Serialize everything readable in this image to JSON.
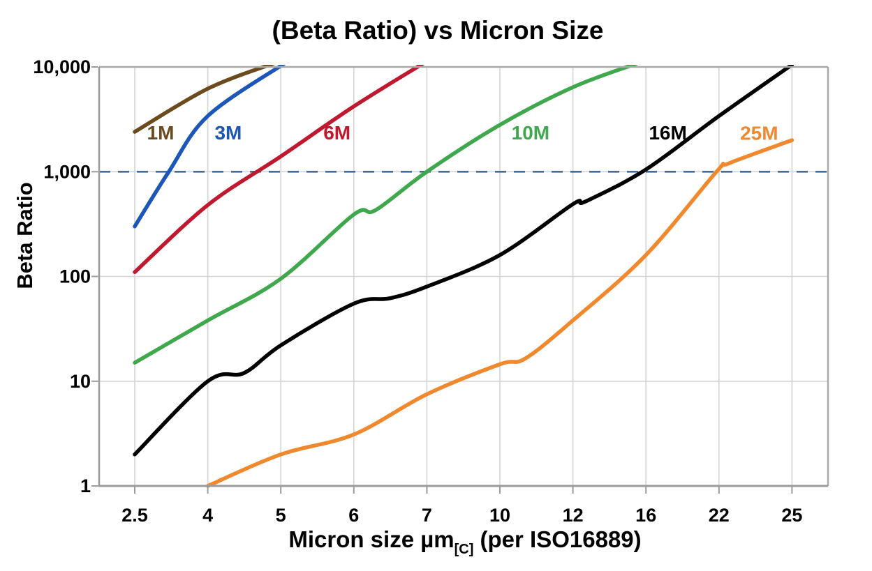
{
  "chart_data": {
    "type": "line",
    "title": "(Beta Ratio) vs Micron Size",
    "ylabel": "Beta Ratio",
    "xlabel": "Micron size µm[C] (per ISO16889)",
    "xlabel_parts": {
      "main": "Micron size µm",
      "sub": "[C]",
      "rest": " (per ISO16889)"
    },
    "x_axis": {
      "scale": "categorical",
      "categories": [
        2.5,
        4,
        5,
        6,
        7,
        10,
        12,
        16,
        22,
        25
      ],
      "tick_labels": [
        "2.5",
        "4",
        "5",
        "6",
        "7",
        "10",
        "12",
        "16",
        "22",
        "25"
      ]
    },
    "y_axis": {
      "scale": "log",
      "range": [
        1,
        10000
      ],
      "tick_values": [
        1,
        10,
        100,
        1000,
        10000
      ],
      "tick_labels": [
        "1",
        "10",
        "100",
        "1,000",
        "10,000"
      ],
      "gridline_values": [
        10,
        100,
        1000
      ]
    },
    "grid": true,
    "legend_position": "inline-labels",
    "reference_line": {
      "value": 1000,
      "style": "dashed",
      "color": "#426a9a"
    },
    "series": [
      {
        "name": "1M",
        "color": "#6b4a1d",
        "label": {
          "text": "1M",
          "micron": 3.03,
          "value": 2350
        },
        "points": [
          [
            2.5,
            2400
          ],
          [
            4,
            6200
          ],
          [
            4.9,
            10800
          ]
        ]
      },
      {
        "name": "3M",
        "color": "#1c56b7",
        "label": {
          "text": "3M",
          "micron": 4.28,
          "value": 2350
        },
        "points": [
          [
            2.5,
            300
          ],
          [
            3.2,
            1000
          ],
          [
            4,
            3400
          ],
          [
            5.05,
            10800
          ]
        ]
      },
      {
        "name": "6M",
        "color": "#c0182f",
        "label": {
          "text": "6M",
          "micron": 5.77,
          "value": 2350
        },
        "points": [
          [
            2.5,
            110
          ],
          [
            4,
            480
          ],
          [
            5,
            1400
          ],
          [
            6,
            4200
          ],
          [
            6.95,
            10800
          ]
        ]
      },
      {
        "name": "10M",
        "color": "#3fa74c",
        "label": {
          "text": "10M",
          "micron": 10.84,
          "value": 2350
        },
        "points": [
          [
            2.5,
            15
          ],
          [
            4,
            38
          ],
          [
            5,
            95
          ],
          [
            6,
            390
          ],
          [
            6.3,
            430
          ],
          [
            7,
            1000
          ],
          [
            10,
            2800
          ],
          [
            12,
            6400
          ],
          [
            15.5,
            10800
          ]
        ]
      },
      {
        "name": "16M",
        "color": "#000000",
        "label": {
          "text": "16M",
          "micron": 17.8,
          "value": 2350
        },
        "points": [
          [
            2.5,
            2
          ],
          [
            4,
            10
          ],
          [
            4.5,
            12
          ],
          [
            5,
            22
          ],
          [
            6,
            55
          ],
          [
            6.5,
            62
          ],
          [
            7,
            80
          ],
          [
            10,
            160
          ],
          [
            12,
            490
          ],
          [
            12.7,
            520
          ],
          [
            16,
            1050
          ],
          [
            22,
            3400
          ],
          [
            25,
            10500
          ]
        ]
      },
      {
        "name": "25M",
        "color": "#f0892d",
        "label": {
          "text": "25M",
          "micron": 23.65,
          "value": 2330
        },
        "points": [
          [
            4,
            1
          ],
          [
            5,
            2.0
          ],
          [
            6,
            3.1
          ],
          [
            7,
            7.5
          ],
          [
            10,
            14.5
          ],
          [
            10.7,
            16.5
          ],
          [
            12,
            38
          ],
          [
            16,
            160
          ],
          [
            21.8,
            1000
          ],
          [
            22.4,
            1200
          ],
          [
            25,
            2000
          ]
        ]
      }
    ]
  }
}
